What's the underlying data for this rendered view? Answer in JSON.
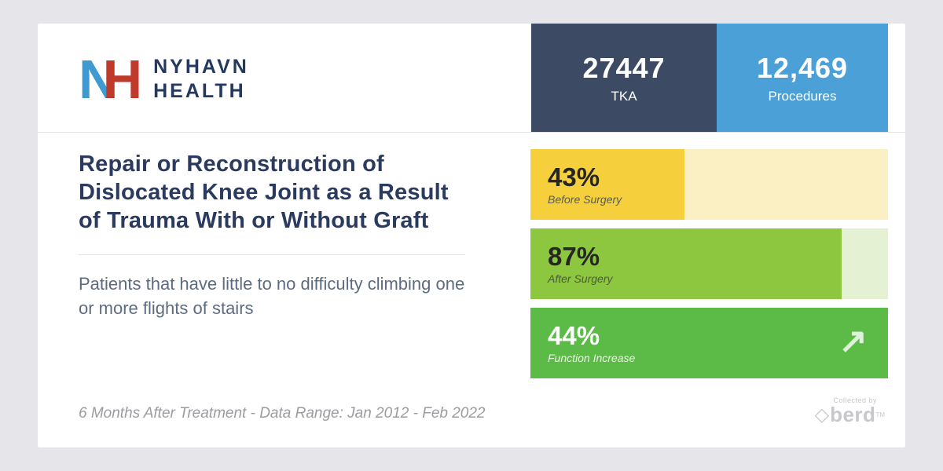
{
  "page": {
    "background": "#e6e6ea",
    "card_background": "#ffffff"
  },
  "header": {
    "logo": {
      "n": "N",
      "h": "H",
      "name_top": "NYHAVN",
      "name_bottom": "HEALTH",
      "n_color": "#3f9ad2",
      "h_color": "#bf3a2b",
      "name_color": "#24395f"
    },
    "stats": [
      {
        "value": "27447",
        "label": "TKA",
        "bg": "#3d4a63"
      },
      {
        "value": "12,469",
        "label": "Procedures",
        "bg": "#4ba0d8"
      }
    ]
  },
  "main": {
    "title": "Repair or Reconstruction of Dislocated Knee Joint as a Result of Trauma With or Without Graft",
    "subtitle": "Patients that have little to no difficulty climbing one or more flights of stairs"
  },
  "chart_data": {
    "type": "bar",
    "orientation": "horizontal",
    "unit": "%",
    "categories": [
      "Before Surgery",
      "After Surgery",
      "Function Increase"
    ],
    "values": [
      43,
      87,
      44
    ],
    "xlim": [
      0,
      100
    ],
    "grid": false,
    "legend": "none",
    "bars": [
      {
        "value": 43,
        "width": 43,
        "display": "43%",
        "label": "Before Surgery",
        "fill": "#f5d03c",
        "track": "#faf0c3",
        "text": "#262626",
        "label_color": "#5b5b4e",
        "arrow": ""
      },
      {
        "value": 87,
        "width": 87,
        "display": "87%",
        "label": "After Surgery",
        "fill": "#8dc63f",
        "track": "#e4f1d3",
        "text": "#262626",
        "label_color": "#4c5b3c",
        "arrow": ""
      },
      {
        "value": 44,
        "width": 100,
        "display": "44%",
        "label": "Function Increase",
        "fill": "#5bbb46",
        "track": "#5bbb46",
        "text": "#ffffff",
        "label_color": "#e9f6e2",
        "arrow": "↗"
      }
    ]
  },
  "footer": {
    "note": "6 Months After Treatment - Data Range: Jan 2012 - Feb 2022",
    "collected_by": "Collected by",
    "brand_diamond": "◇",
    "brand": "berd",
    "tm": "TM"
  }
}
